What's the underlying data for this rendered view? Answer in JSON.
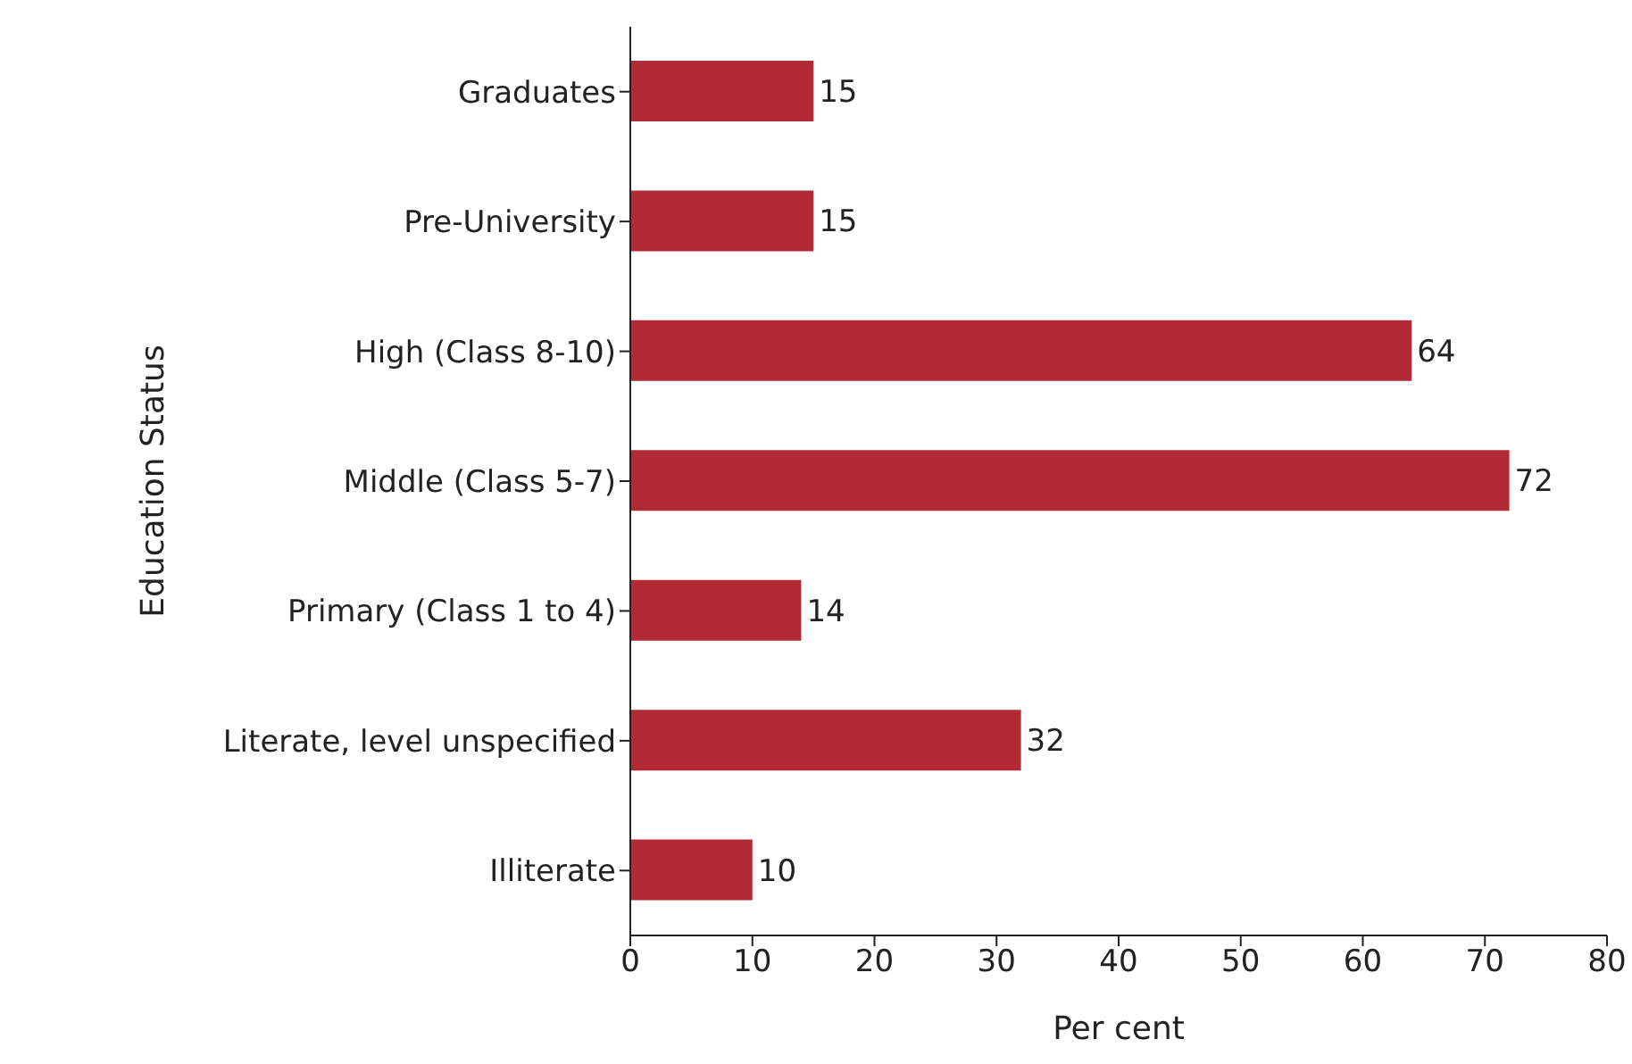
{
  "chart_data": {
    "type": "bar",
    "orientation": "horizontal",
    "xlabel": "Per  cent",
    "ylabel": "Education Status",
    "categories": [
      "Graduates",
      "Pre-University",
      "High (Class 8-10)",
      "Middle (Class 5-7)",
      "Primary (Class 1 to 4)",
      "Literate, level unspecified",
      "Illiterate"
    ],
    "values": [
      15,
      15,
      64,
      72,
      14,
      32,
      10
    ],
    "color": "#b22a35",
    "xlim": [
      0,
      80
    ],
    "xticks": [
      0,
      10,
      20,
      30,
      40,
      50,
      60,
      70,
      80
    ],
    "grid": false,
    "legend": false,
    "data_labels": true
  }
}
